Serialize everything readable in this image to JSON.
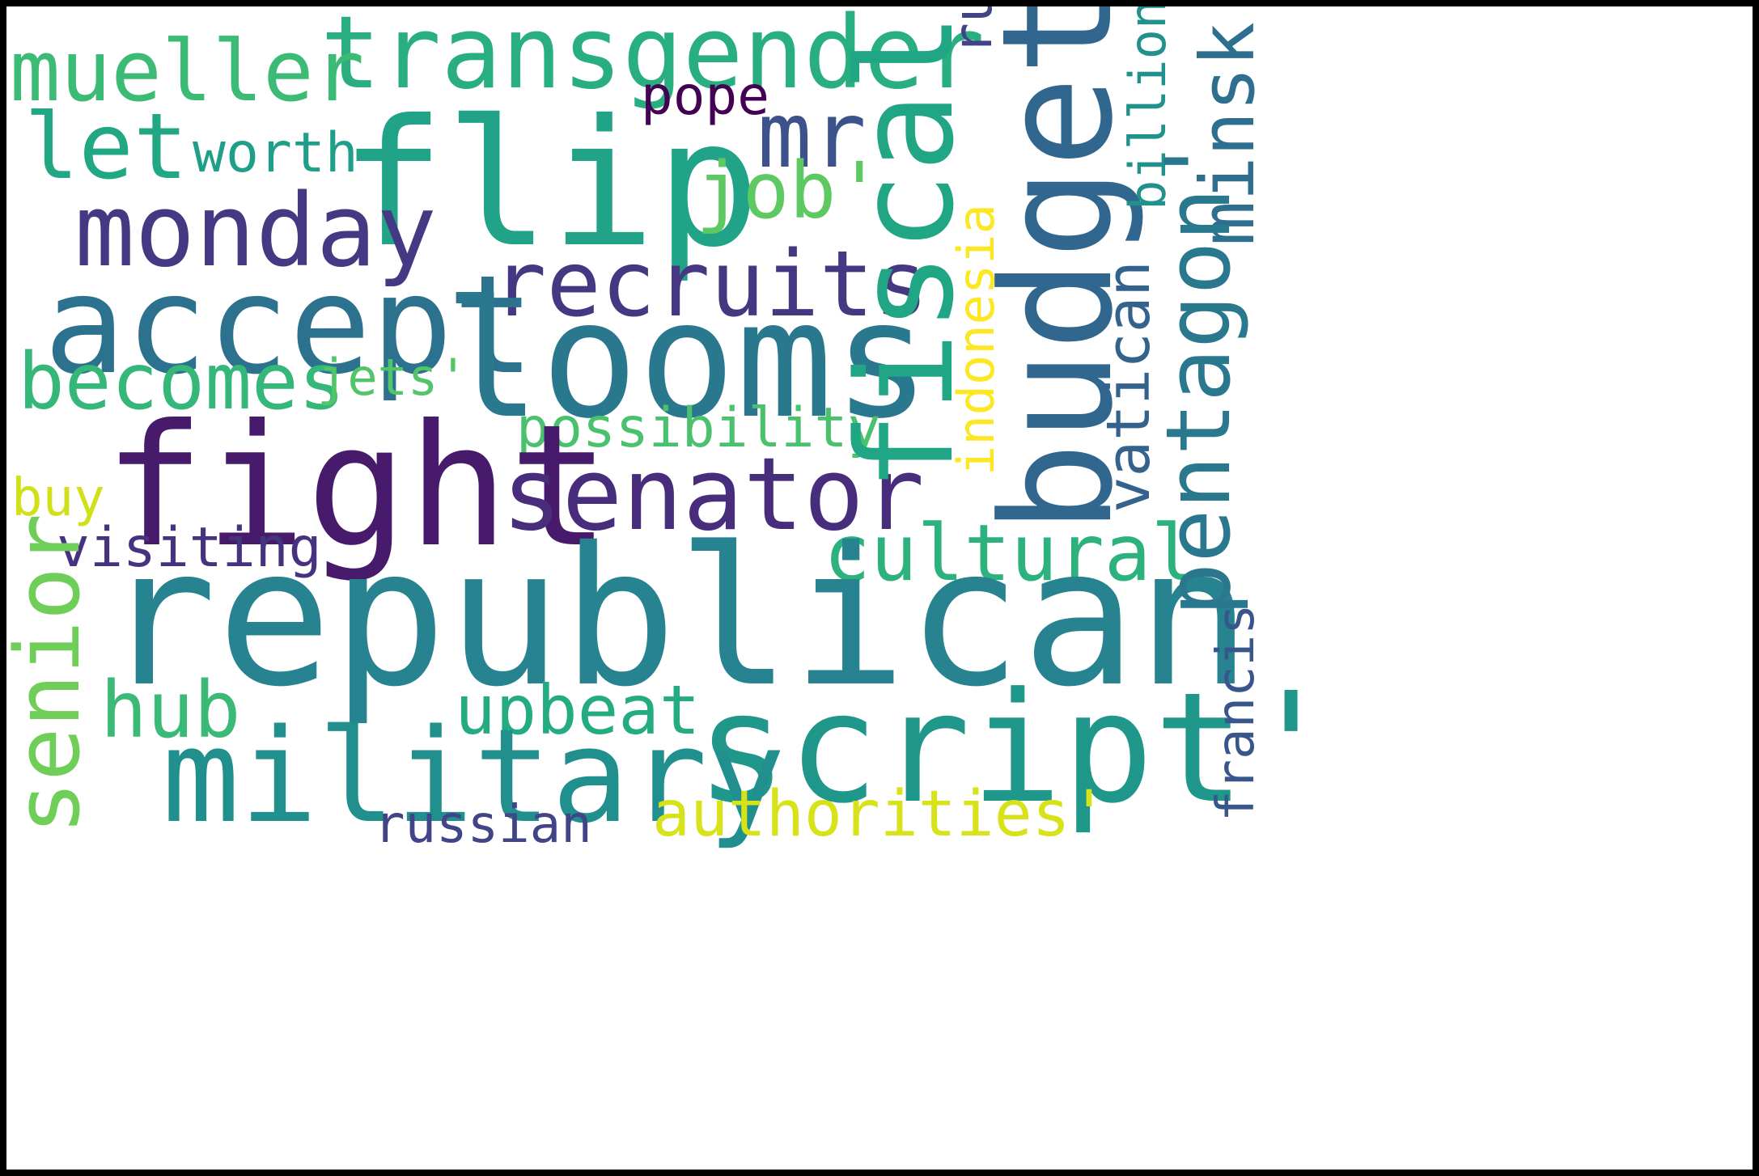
{
  "words": {
    "republican": {
      "text": "republican",
      "color": "#26838f"
    },
    "fight": {
      "text": "fight",
      "color": "#481a6c"
    },
    "looms": {
      "text": "looms",
      "color": "#2a788e"
    },
    "flip": {
      "text": "flip",
      "color": "#20a386"
    },
    "fiscal": {
      "text": "fiscal",
      "color": "#21a685"
    },
    "budget": {
      "text": "budget",
      "color": "#31668e"
    },
    "script": {
      "text": "script'",
      "color": "#1f978b"
    },
    "military": {
      "text": "military",
      "color": "#218f8d"
    },
    "accept": {
      "text": "accept",
      "color": "#2c718e"
    },
    "transgender": {
      "text": "transgender",
      "color": "#29af7f"
    },
    "mueller": {
      "text": "mueller",
      "color": "#3bbb75"
    },
    "recruits": {
      "text": "recruits",
      "color": "#453781"
    },
    "senator": {
      "text": "senator",
      "color": "#472d7b"
    },
    "monday": {
      "text": "monday",
      "color": "#443983"
    },
    "pentagon": {
      "text": "pentagon'",
      "color": "#2a788e"
    },
    "minsk": {
      "text": "minsk",
      "color": "#2e6e8e"
    },
    "mr": {
      "text": "mr",
      "color": "#3b528b"
    },
    "let": {
      "text": "let",
      "color": "#22a785"
    },
    "job": {
      "text": "job'",
      "color": "#5ec962"
    },
    "becomes": {
      "text": "becomes",
      "color": "#35b779"
    },
    "senior": {
      "text": "senior",
      "color": "#6ece58"
    },
    "cultural": {
      "text": "cultural",
      "color": "#2db27d"
    },
    "vatican": {
      "text": "vatican",
      "color": "#33638d"
    },
    "upbeat": {
      "text": "upbeat",
      "color": "#25ab82"
    },
    "hub": {
      "text": "hub",
      "color": "#3aba76"
    },
    "authorities": {
      "text": "authorities'",
      "color": "#d8e219"
    },
    "russian": {
      "text": "russian",
      "color": "#414487"
    },
    "visiting": {
      "text": "visiting",
      "color": "#46327e"
    },
    "possibility": {
      "text": "possibility",
      "color": "#4ac16d"
    },
    "indonesia": {
      "text": "indonesia",
      "color": "#fde725"
    },
    "francis": {
      "text": "francis",
      "color": "#39568c"
    },
    "worth": {
      "text": "worth",
      "color": "#1f9e89"
    },
    "pope": {
      "text": "pope",
      "color": "#440154"
    },
    "russia": {
      "text": "russia'",
      "color": "#414487"
    },
    "billion": {
      "text": "billion",
      "color": "#21918c"
    },
    "jets": {
      "text": "jets'",
      "color": "#52c569"
    },
    "buy": {
      "text": "buy",
      "color": "#d0e11c"
    }
  }
}
